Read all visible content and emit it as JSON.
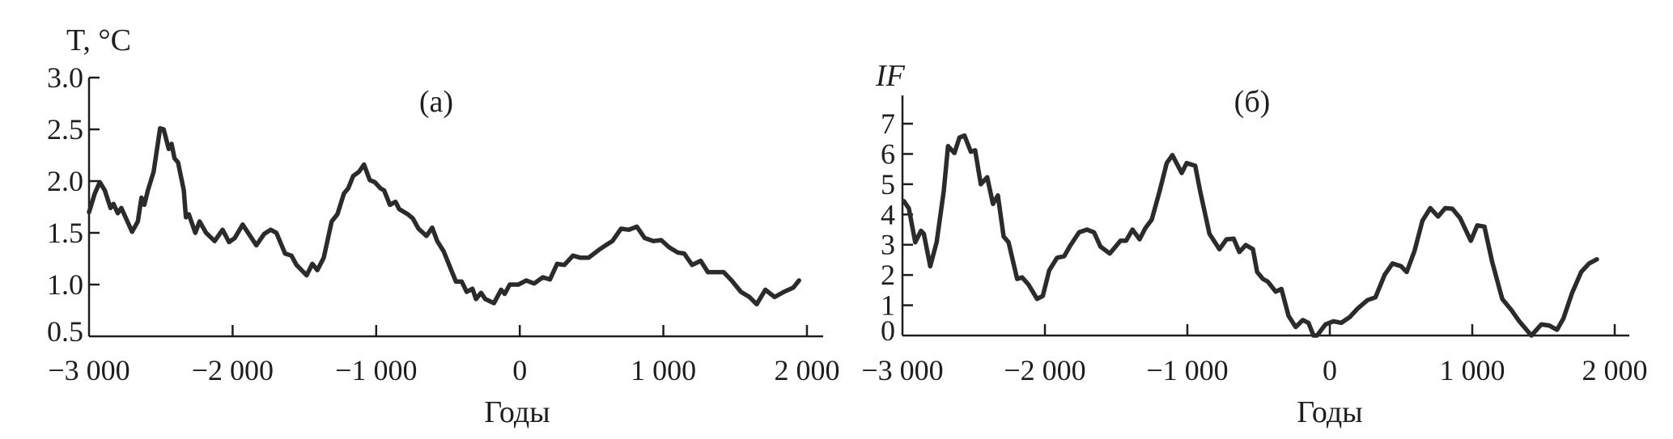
{
  "chart_data": [
    {
      "type": "line",
      "panel_label": "(а)",
      "ylabel": "T, °C",
      "xlabel": "Годы",
      "xlim": [
        -3000,
        2000
      ],
      "ylim": [
        0.5,
        3.0
      ],
      "grid": false,
      "x_ticks": [
        -3000,
        -2000,
        -1000,
        0,
        1000,
        2000
      ],
      "x_tick_labels": [
        "−3 000",
        "−2 000",
        "−1 000",
        "0",
        "1 000",
        "2 000"
      ],
      "y_ticks": [
        0.5,
        1.0,
        1.5,
        2.0,
        2.5,
        3.0
      ],
      "y_tick_labels": [
        "0.5",
        "1.0",
        "1.5",
        "2.0",
        "2.5",
        "3.0"
      ],
      "color": "#2b2b2b",
      "points": [
        [
          -3000,
          1.7
        ],
        [
          -2960,
          1.88
        ],
        [
          -2925,
          1.99
        ],
        [
          -2890,
          1.91
        ],
        [
          -2850,
          1.74
        ],
        [
          -2830,
          1.78
        ],
        [
          -2800,
          1.69
        ],
        [
          -2775,
          1.74
        ],
        [
          -2700,
          1.51
        ],
        [
          -2660,
          1.61
        ],
        [
          -2635,
          1.84
        ],
        [
          -2615,
          1.77
        ],
        [
          -2590,
          1.91
        ],
        [
          -2550,
          2.09
        ],
        [
          -2505,
          2.51
        ],
        [
          -2480,
          2.5
        ],
        [
          -2445,
          2.31
        ],
        [
          -2425,
          2.36
        ],
        [
          -2405,
          2.22
        ],
        [
          -2380,
          2.18
        ],
        [
          -2340,
          1.91
        ],
        [
          -2325,
          1.65
        ],
        [
          -2305,
          1.68
        ],
        [
          -2260,
          1.5
        ],
        [
          -2230,
          1.61
        ],
        [
          -2185,
          1.5
        ],
        [
          -2125,
          1.42
        ],
        [
          -2070,
          1.53
        ],
        [
          -2025,
          1.41
        ],
        [
          -1985,
          1.45
        ],
        [
          -1930,
          1.58
        ],
        [
          -1835,
          1.38
        ],
        [
          -1780,
          1.49
        ],
        [
          -1735,
          1.53
        ],
        [
          -1695,
          1.5
        ],
        [
          -1635,
          1.3
        ],
        [
          -1590,
          1.28
        ],
        [
          -1555,
          1.19
        ],
        [
          -1485,
          1.09
        ],
        [
          -1445,
          1.2
        ],
        [
          -1410,
          1.14
        ],
        [
          -1365,
          1.26
        ],
        [
          -1310,
          1.61
        ],
        [
          -1270,
          1.68
        ],
        [
          -1225,
          1.88
        ],
        [
          -1195,
          1.93
        ],
        [
          -1160,
          2.05
        ],
        [
          -1120,
          2.09
        ],
        [
          -1085,
          2.16
        ],
        [
          -1045,
          2.01
        ],
        [
          -1010,
          1.99
        ],
        [
          -970,
          1.93
        ],
        [
          -945,
          1.91
        ],
        [
          -905,
          1.77
        ],
        [
          -865,
          1.8
        ],
        [
          -840,
          1.73
        ],
        [
          -780,
          1.68
        ],
        [
          -745,
          1.64
        ],
        [
          -705,
          1.54
        ],
        [
          -650,
          1.47
        ],
        [
          -610,
          1.55
        ],
        [
          -575,
          1.42
        ],
        [
          -530,
          1.32
        ],
        [
          -480,
          1.15
        ],
        [
          -445,
          1.03
        ],
        [
          -405,
          1.03
        ],
        [
          -370,
          0.93
        ],
        [
          -330,
          0.96
        ],
        [
          -305,
          0.86
        ],
        [
          -270,
          0.92
        ],
        [
          -240,
          0.86
        ],
        [
          -180,
          0.82
        ],
        [
          -130,
          0.95
        ],
        [
          -105,
          0.91
        ],
        [
          -70,
          1.0
        ],
        [
          -10,
          1.0
        ],
        [
          45,
          1.04
        ],
        [
          100,
          1.01
        ],
        [
          160,
          1.07
        ],
        [
          210,
          1.05
        ],
        [
          260,
          1.2
        ],
        [
          310,
          1.19
        ],
        [
          370,
          1.28
        ],
        [
          420,
          1.26
        ],
        [
          480,
          1.26
        ],
        [
          555,
          1.34
        ],
        [
          610,
          1.39
        ],
        [
          645,
          1.42
        ],
        [
          705,
          1.54
        ],
        [
          760,
          1.53
        ],
        [
          815,
          1.56
        ],
        [
          870,
          1.45
        ],
        [
          930,
          1.42
        ],
        [
          985,
          1.43
        ],
        [
          1040,
          1.36
        ],
        [
          1100,
          1.31
        ],
        [
          1145,
          1.3
        ],
        [
          1200,
          1.19
        ],
        [
          1260,
          1.23
        ],
        [
          1310,
          1.12
        ],
        [
          1420,
          1.12
        ],
        [
          1475,
          1.04
        ],
        [
          1540,
          0.93
        ],
        [
          1600,
          0.88
        ],
        [
          1650,
          0.81
        ],
        [
          1710,
          0.95
        ],
        [
          1775,
          0.88
        ],
        [
          1840,
          0.93
        ],
        [
          1905,
          0.97
        ],
        [
          1945,
          1.04
        ]
      ]
    },
    {
      "type": "line",
      "panel_label": "(б)",
      "ylabel": "IF",
      "xlabel": "Годы",
      "xlim": [
        -3000,
        2000
      ],
      "ylim": [
        0,
        7.8
      ],
      "grid": false,
      "x_ticks": [
        -3000,
        -2000,
        -1000,
        0,
        1000,
        2000
      ],
      "x_tick_labels": [
        "−3 000",
        "−2 000",
        "−1 000",
        "0",
        "1 000",
        "2 000"
      ],
      "y_ticks": [
        0,
        1,
        2,
        3,
        4,
        5,
        6,
        7
      ],
      "y_tick_labels": [
        "0",
        "1",
        "2",
        "3",
        "4",
        "5",
        "6",
        "7"
      ],
      "color": "#2b2b2b",
      "points": [
        [
          -2990,
          4.44
        ],
        [
          -2955,
          4.2
        ],
        [
          -2910,
          3.08
        ],
        [
          -2870,
          3.46
        ],
        [
          -2850,
          3.36
        ],
        [
          -2805,
          2.29
        ],
        [
          -2760,
          3.08
        ],
        [
          -2710,
          4.77
        ],
        [
          -2680,
          6.26
        ],
        [
          -2635,
          6.03
        ],
        [
          -2600,
          6.54
        ],
        [
          -2565,
          6.61
        ],
        [
          -2520,
          6.07
        ],
        [
          -2490,
          6.12
        ],
        [
          -2450,
          5.0
        ],
        [
          -2405,
          5.23
        ],
        [
          -2365,
          4.35
        ],
        [
          -2330,
          4.63
        ],
        [
          -2290,
          3.27
        ],
        [
          -2255,
          3.08
        ],
        [
          -2195,
          1.87
        ],
        [
          -2160,
          1.92
        ],
        [
          -2115,
          1.68
        ],
        [
          -2055,
          1.21
        ],
        [
          -2015,
          1.31
        ],
        [
          -1970,
          2.15
        ],
        [
          -1915,
          2.57
        ],
        [
          -1865,
          2.62
        ],
        [
          -1820,
          2.99
        ],
        [
          -1760,
          3.41
        ],
        [
          -1705,
          3.5
        ],
        [
          -1655,
          3.41
        ],
        [
          -1610,
          2.94
        ],
        [
          -1545,
          2.71
        ],
        [
          -1495,
          2.99
        ],
        [
          -1470,
          3.13
        ],
        [
          -1430,
          3.13
        ],
        [
          -1385,
          3.5
        ],
        [
          -1335,
          3.18
        ],
        [
          -1295,
          3.55
        ],
        [
          -1250,
          3.83
        ],
        [
          -1195,
          4.77
        ],
        [
          -1145,
          5.7
        ],
        [
          -1105,
          5.96
        ],
        [
          -1040,
          5.37
        ],
        [
          -1005,
          5.7
        ],
        [
          -945,
          5.61
        ],
        [
          -910,
          4.77
        ],
        [
          -845,
          3.36
        ],
        [
          -775,
          2.85
        ],
        [
          -725,
          3.18
        ],
        [
          -675,
          3.2
        ],
        [
          -635,
          2.76
        ],
        [
          -590,
          2.99
        ],
        [
          -540,
          2.85
        ],
        [
          -510,
          2.1
        ],
        [
          -470,
          1.87
        ],
        [
          -435,
          1.78
        ],
        [
          -380,
          1.45
        ],
        [
          -340,
          1.54
        ],
        [
          -290,
          0.65
        ],
        [
          -240,
          0.28
        ],
        [
          -190,
          0.51
        ],
        [
          -150,
          0.42
        ],
        [
          -115,
          0.0
        ],
        [
          -90,
          0.0
        ],
        [
          -30,
          0.37
        ],
        [
          25,
          0.47
        ],
        [
          80,
          0.42
        ],
        [
          140,
          0.61
        ],
        [
          195,
          0.89
        ],
        [
          265,
          1.17
        ],
        [
          320,
          1.26
        ],
        [
          385,
          2.01
        ],
        [
          440,
          2.38
        ],
        [
          500,
          2.29
        ],
        [
          540,
          2.1
        ],
        [
          595,
          2.8
        ],
        [
          650,
          3.79
        ],
        [
          705,
          4.21
        ],
        [
          760,
          3.93
        ],
        [
          810,
          4.21
        ],
        [
          860,
          4.19
        ],
        [
          915,
          3.88
        ],
        [
          990,
          3.13
        ],
        [
          1035,
          3.64
        ],
        [
          1085,
          3.6
        ],
        [
          1140,
          2.43
        ],
        [
          1210,
          1.21
        ],
        [
          1275,
          0.84
        ],
        [
          1330,
          0.47
        ],
        [
          1415,
          0.0
        ],
        [
          1485,
          0.37
        ],
        [
          1540,
          0.33
        ],
        [
          1595,
          0.19
        ],
        [
          1640,
          0.56
        ],
        [
          1700,
          1.4
        ],
        [
          1765,
          2.1
        ],
        [
          1820,
          2.38
        ],
        [
          1875,
          2.52
        ]
      ]
    }
  ]
}
